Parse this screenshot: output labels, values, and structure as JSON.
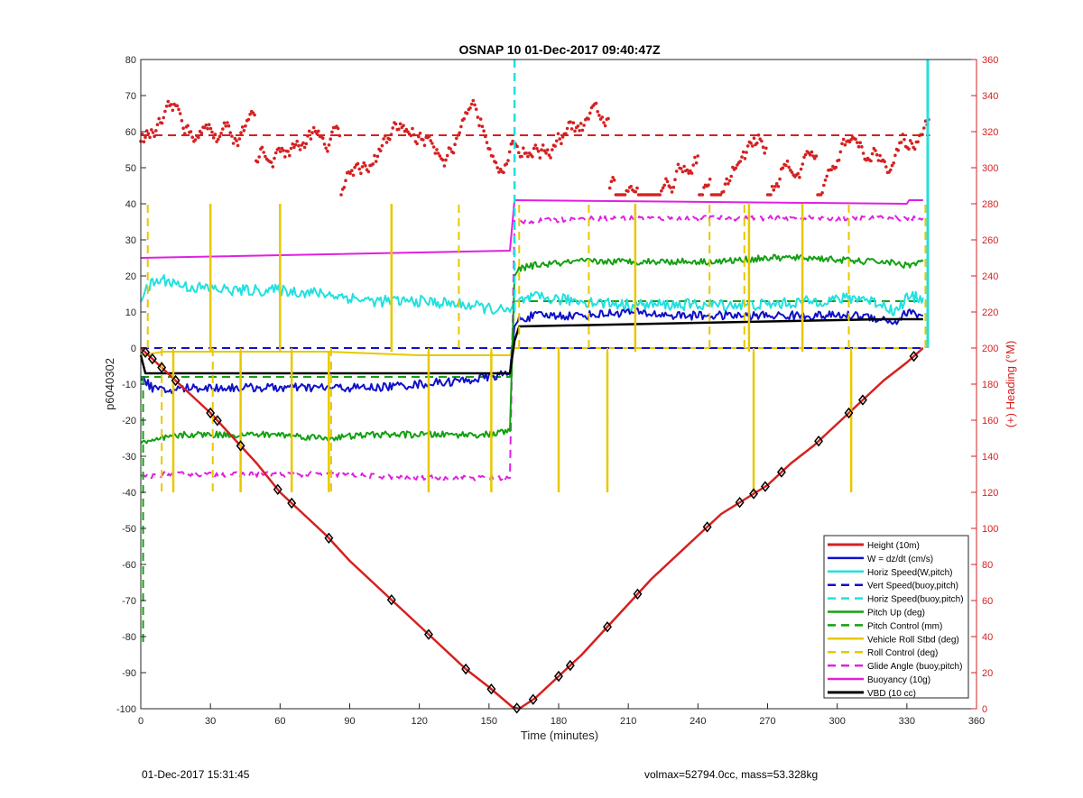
{
  "chart_data": {
    "type": "line",
    "title": "OSNAP 10 01-Dec-2017 09:40:47Z",
    "xlabel": "Time (minutes)",
    "ylabel": "p6040302",
    "y2label": "(+) Heading (°M)",
    "xlim": [
      0,
      360
    ],
    "ylim": [
      -100,
      80
    ],
    "y2lim": [
      0,
      360
    ],
    "xticks": [
      0,
      30,
      60,
      90,
      120,
      150,
      180,
      210,
      240,
      270,
      300,
      330,
      360
    ],
    "yticks": [
      -100,
      -90,
      -80,
      -70,
      -60,
      -50,
      -40,
      -30,
      -20,
      -10,
      0,
      10,
      20,
      30,
      40,
      50,
      60,
      70,
      80
    ],
    "y2ticks": [
      0,
      20,
      40,
      60,
      80,
      100,
      120,
      140,
      160,
      180,
      200,
      220,
      240,
      260,
      280,
      300,
      320,
      340,
      360
    ],
    "grid": false,
    "legend_position": "bottom-right",
    "series": [
      {
        "name": "Height (10m)",
        "color": "#d62020",
        "style": "solid",
        "width": 2.5,
        "x": [
          0,
          10,
          20,
          30,
          40,
          50,
          60,
          70,
          80,
          90,
          100,
          110,
          120,
          130,
          140,
          150,
          160,
          163,
          170,
          180,
          190,
          200,
          210,
          220,
          230,
          240,
          250,
          260,
          270,
          280,
          290,
          300,
          310,
          320,
          330,
          337
        ],
        "y": [
          0,
          -6,
          -12,
          -18,
          -25,
          -32,
          -40,
          -46,
          -52,
          -59,
          -65,
          -71,
          -77,
          -83,
          -89,
          -94,
          -99.5,
          -100,
          -97,
          -91,
          -85,
          -78,
          -71,
          -64,
          -58,
          -52,
          -46,
          -42,
          -38,
          -32,
          -27,
          -21,
          -15,
          -9,
          -4,
          0
        ]
      },
      {
        "name": "W = dz/dt (cm/s)",
        "color": "#1010c8",
        "style": "solid",
        "width": 2,
        "x": [
          0,
          5,
          10,
          20,
          40,
          60,
          80,
          100,
          120,
          140,
          150,
          159,
          161,
          163,
          170,
          190,
          210,
          230,
          250,
          270,
          290,
          310,
          320,
          325,
          330,
          337
        ],
        "y": [
          -8,
          -11,
          -12,
          -11,
          -11,
          -11,
          -11,
          -11,
          -10,
          -9,
          -8,
          -7,
          6,
          8,
          9,
          9,
          10,
          9,
          9,
          9,
          9,
          9,
          8,
          7,
          10,
          9
        ]
      },
      {
        "name": "Horiz Speed(W,pitch)",
        "color": "#22e0e0",
        "style": "solid",
        "width": 2,
        "x": [
          0,
          5,
          10,
          20,
          40,
          60,
          80,
          100,
          120,
          140,
          150,
          159,
          161,
          163,
          170,
          190,
          210,
          230,
          250,
          270,
          290,
          310,
          320,
          325,
          330,
          337
        ],
        "y": [
          14,
          18,
          19,
          17,
          16,
          16,
          15,
          13,
          13,
          12,
          11,
          10,
          13,
          13,
          14,
          13,
          12,
          12,
          12,
          12,
          13,
          14,
          12,
          10,
          14,
          14
        ]
      },
      {
        "name": "Vert Speed(buoy,pitch)",
        "color": "#1010c8",
        "style": "dashed",
        "width": 2,
        "x": [
          0,
          337
        ],
        "y": [
          0,
          0
        ]
      },
      {
        "name": "Horiz Speed(buoy,pitch)",
        "color": "#22e0e0",
        "style": "dashed",
        "width": 2,
        "x": [
          0,
          159,
          161,
          337
        ],
        "y": [
          0,
          0,
          0,
          0
        ]
      },
      {
        "name": "Pitch Up (deg)",
        "color": "#12a012",
        "style": "solid",
        "width": 2,
        "x": [
          0,
          5,
          10,
          20,
          40,
          60,
          80,
          100,
          120,
          140,
          150,
          159,
          161,
          163,
          170,
          190,
          210,
          230,
          250,
          270,
          290,
          310,
          320,
          330,
          337
        ],
        "y": [
          -26,
          -26,
          -25,
          -24,
          -24,
          -24,
          -25,
          -24,
          -24,
          -24,
          -24,
          -23,
          20,
          22,
          23,
          24,
          24,
          24,
          24,
          25,
          25,
          24,
          24,
          23,
          24
        ]
      },
      {
        "name": "Pitch Control (mm)",
        "color": "#12a012",
        "style": "dashed",
        "width": 2,
        "x": [
          0,
          159,
          161,
          337
        ],
        "y": [
          -8,
          -8,
          13,
          13
        ]
      },
      {
        "name": "Vehicle Roll Stbd (deg)",
        "color": "#e8c800",
        "style": "solid",
        "width": 2,
        "x": [
          0,
          10,
          40,
          80,
          120,
          159,
          161,
          200,
          250,
          300,
          337
        ],
        "y": [
          -2,
          -1,
          -1,
          -1,
          -2,
          -2,
          0,
          0,
          0,
          0,
          0
        ]
      },
      {
        "name": "Roll Control (deg)",
        "color": "#e8c800",
        "style": "dashed",
        "width": 2,
        "x": [
          0,
          337
        ],
        "y": [
          0,
          0
        ]
      },
      {
        "name": "Glide Angle (buoy,pitch)",
        "color": "#e020e0",
        "style": "dashed",
        "width": 2,
        "x": [
          0,
          10,
          40,
          80,
          120,
          159,
          161,
          200,
          250,
          300,
          337
        ],
        "y": [
          -36,
          -35,
          -35,
          -35,
          -36,
          -36,
          35,
          36,
          36,
          36,
          36
        ]
      },
      {
        "name": "Buoyancy (10g)",
        "color": "#e020e0",
        "style": "solid",
        "width": 2,
        "x": [
          0,
          159,
          161,
          330,
          331,
          337
        ],
        "y": [
          25,
          27,
          41,
          40,
          41,
          41
        ]
      },
      {
        "name": "VBD (10 cc)",
        "color": "#000000",
        "style": "solid",
        "width": 2.5,
        "x": [
          0,
          2,
          159,
          161,
          163,
          320,
          337
        ],
        "y": [
          -2,
          -7,
          -7,
          2,
          6,
          8,
          8
        ]
      }
    ],
    "heading": {
      "axis": "y2",
      "color": "#d62020",
      "mean": 318
    },
    "markers": {
      "x": [
        2,
        5,
        9,
        15,
        30,
        33,
        43,
        59,
        65,
        81,
        108,
        124,
        140,
        151,
        162,
        169,
        180,
        185,
        201,
        214,
        244,
        258,
        264,
        269,
        276,
        292,
        305,
        311,
        333
      ]
    }
  },
  "footer": {
    "timestamp": "01-Dec-2017 15:31:45",
    "stats": "volmax=52794.0cc, mass=53.328kg"
  }
}
